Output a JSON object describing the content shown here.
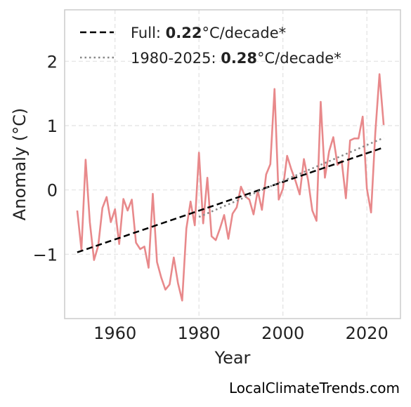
{
  "chart_data": {
    "type": "line",
    "title": "",
    "xlabel": "Year",
    "ylabel": "Anomaly (°C)",
    "xlim": [
      1948,
      2028
    ],
    "ylim": [
      -2.0,
      2.8
    ],
    "x_ticks": [
      1960,
      1980,
      2000,
      2020
    ],
    "y_ticks": [
      -1,
      0,
      1,
      2
    ],
    "y_tick_labels": [
      "−1",
      "0",
      "1",
      "2"
    ],
    "grid": true,
    "legend_position": "top-left",
    "series": [
      {
        "type": "line",
        "color": "#e8898b",
        "x": [
          1951,
          1952,
          1953,
          1954,
          1955,
          1956,
          1957,
          1958,
          1959,
          1960,
          1961,
          1962,
          1963,
          1964,
          1965,
          1966,
          1967,
          1968,
          1969,
          1970,
          1971,
          1972,
          1973,
          1974,
          1975,
          1976,
          1977,
          1978,
          1979,
          1980,
          1981,
          1982,
          1983,
          1984,
          1985,
          1986,
          1987,
          1988,
          1989,
          1990,
          1991,
          1992,
          1993,
          1994,
          1995,
          1996,
          1997,
          1998,
          1999,
          2000,
          2001,
          2002,
          2003,
          2004,
          2005,
          2006,
          2007,
          2008,
          2009,
          2010,
          2011,
          2012,
          2013,
          2014,
          2015,
          2016,
          2017,
          2018,
          2019,
          2020,
          2021,
          2022,
          2023,
          2024
        ],
        "y": [
          -0.32,
          -0.93,
          0.47,
          -0.5,
          -1.09,
          -0.87,
          -0.28,
          -0.11,
          -0.5,
          -0.3,
          -0.84,
          -0.14,
          -0.32,
          -0.15,
          -0.82,
          -0.92,
          -0.88,
          -1.21,
          -0.06,
          -1.12,
          -1.36,
          -1.55,
          -1.47,
          -1.05,
          -1.45,
          -1.72,
          -0.6,
          -0.18,
          -0.55,
          0.58,
          -0.52,
          0.19,
          -0.72,
          -0.78,
          -0.6,
          -0.39,
          -0.76,
          -0.37,
          -0.27,
          0.05,
          -0.1,
          -0.15,
          -0.38,
          -0.01,
          -0.31,
          0.24,
          0.4,
          1.57,
          -0.15,
          0.02,
          0.53,
          0.32,
          0.14,
          -0.07,
          0.48,
          0.15,
          -0.32,
          -0.48,
          1.37,
          0.19,
          0.6,
          0.82,
          0.39,
          0.45,
          -0.13,
          0.77,
          0.8,
          0.8,
          1.14,
          0.02,
          -0.35,
          0.88,
          1.8,
          1.01
        ]
      },
      {
        "type": "trend",
        "style": "dashed",
        "color": "#000000",
        "x": [
          1951,
          2024
        ],
        "y": [
          -0.97,
          0.66
        ]
      },
      {
        "type": "trend",
        "style": "dotted",
        "color": "#888888",
        "x": [
          1980,
          2024
        ],
        "y": [
          -0.42,
          0.81
        ]
      }
    ],
    "legend": [
      {
        "style": "dashed",
        "color": "#000000",
        "prefix": "Full: ",
        "value": "0.22",
        "suffix": "°C/decade*"
      },
      {
        "style": "dotted",
        "color": "#888888",
        "prefix": "1980-2025: ",
        "value": "0.28",
        "suffix": "°C/decade*"
      }
    ],
    "credit": "LocalClimateTrends.com"
  }
}
